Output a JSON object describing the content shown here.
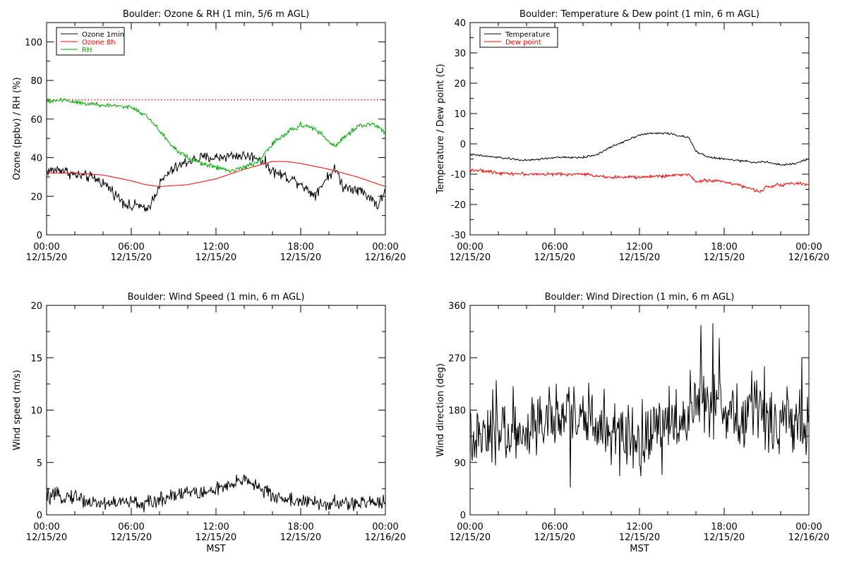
{
  "chart_data": [
    {
      "type": "line",
      "title": "Boulder: Ozone & RH (1 min, 5/6 m AGL)",
      "xlabel": "",
      "ylabel": "Ozone (ppbv) / RH (%)",
      "ylim": [
        0,
        110
      ],
      "yticks": [
        0,
        20,
        40,
        60,
        80,
        100
      ],
      "xlim": [
        0,
        24
      ],
      "xticks": [
        0,
        6,
        12,
        18,
        24
      ],
      "xtick_labels": [
        [
          "00:00",
          "12/15/20"
        ],
        [
          "06:00",
          "12/15/20"
        ],
        [
          "12:00",
          "12/15/20"
        ],
        [
          "18:00",
          "12/15/20"
        ],
        [
          "00:00",
          "12/16/20"
        ]
      ],
      "legend_position": "top-left",
      "reference_line": {
        "y": 70,
        "color": "#ff0000",
        "style": "dotted"
      },
      "series": [
        {
          "name": "Ozone 1min",
          "color": "#000000",
          "noise": 2.2,
          "x": [
            0,
            1,
            2,
            3,
            3.5,
            4,
            4.5,
            5,
            5.5,
            6,
            6.5,
            7,
            7.5,
            8,
            8.5,
            9,
            10,
            11,
            12,
            13,
            14,
            15,
            15.5,
            16,
            17,
            18,
            18.5,
            19,
            19.5,
            20,
            20.5,
            21,
            22,
            23,
            23.5,
            24
          ],
          "y": [
            33,
            34,
            31,
            30,
            29,
            27,
            24,
            20,
            17,
            14,
            16,
            12,
            18,
            26,
            31,
            34,
            38,
            40,
            40,
            41,
            41,
            40,
            37,
            33,
            30,
            27,
            23,
            21,
            26,
            31,
            34,
            25,
            24,
            19,
            15,
            23
          ]
        },
        {
          "name": "Ozone 8h",
          "color": "#ff0000",
          "noise": 0,
          "x": [
            0,
            2,
            4,
            6,
            7,
            8,
            10,
            12,
            14,
            16,
            17,
            18,
            20,
            22,
            24
          ],
          "y": [
            32,
            32,
            31,
            28,
            26,
            25,
            26,
            29,
            34,
            38,
            38,
            37,
            34,
            30,
            25
          ]
        },
        {
          "name": "RH",
          "color": "#00aa00",
          "noise": 1.0,
          "x": [
            0,
            1,
            2,
            3,
            4,
            5,
            6,
            7,
            8,
            9,
            10,
            11,
            12,
            13,
            14,
            15,
            16,
            17,
            18,
            19,
            19.5,
            20,
            20.5,
            21,
            22,
            23,
            24
          ],
          "y": [
            69,
            70,
            69,
            68,
            67,
            67,
            66,
            62,
            54,
            45,
            40,
            37,
            35,
            33,
            35,
            38,
            47,
            53,
            57,
            55,
            52,
            48,
            46,
            50,
            56,
            58,
            53
          ]
        }
      ]
    },
    {
      "type": "line",
      "title": "Boulder: Temperature & Dew point (1 min, 6 m AGL)",
      "xlabel": "",
      "ylabel": "Temperature / Dew point (C)",
      "ylim": [
        -30,
        40
      ],
      "yticks": [
        -30,
        -20,
        -10,
        0,
        10,
        20,
        30,
        40
      ],
      "xlim": [
        0,
        24
      ],
      "xticks": [
        0,
        6,
        12,
        18,
        24
      ],
      "xtick_labels": [
        [
          "00:00",
          "12/15/20"
        ],
        [
          "06:00",
          "12/15/20"
        ],
        [
          "12:00",
          "12/15/20"
        ],
        [
          "18:00",
          "12/15/20"
        ],
        [
          "00:00",
          "12/16/20"
        ]
      ],
      "legend_position": "top-left",
      "series": [
        {
          "name": "Temperature",
          "color": "#000000",
          "noise": 0.25,
          "x": [
            0,
            1,
            2,
            3,
            4,
            5,
            6,
            7,
            8,
            9,
            10,
            11,
            12,
            13,
            14,
            15,
            15.5,
            16,
            17,
            18,
            19,
            20,
            21,
            22,
            23,
            24
          ],
          "y": [
            -3.5,
            -4,
            -4.5,
            -5,
            -5.5,
            -5,
            -4.5,
            -4.5,
            -4.5,
            -3.5,
            -1,
            1,
            3,
            3.5,
            3.5,
            2.5,
            2,
            -2.5,
            -4.5,
            -5,
            -5.5,
            -6,
            -6,
            -7,
            -6.5,
            -5
          ]
        },
        {
          "name": "Dew point",
          "color": "#ff0000",
          "noise": 0.4,
          "x": [
            0,
            2,
            4,
            6,
            8,
            10,
            12,
            14,
            15.5,
            16,
            17,
            18,
            19,
            20,
            20.5,
            21,
            22,
            23,
            24
          ],
          "y": [
            -8.5,
            -9.5,
            -10,
            -10,
            -10,
            -11,
            -11,
            -10.5,
            -10,
            -12.5,
            -12,
            -12.5,
            -13.5,
            -15,
            -16,
            -14,
            -13.5,
            -13,
            -13.5
          ]
        }
      ]
    },
    {
      "type": "line",
      "title": "Boulder: Wind Speed (1 min, 6 m AGL)",
      "xlabel": "MST",
      "ylabel": "Wind speed (m/s)",
      "ylim": [
        0,
        20
      ],
      "yticks": [
        0,
        5,
        10,
        15,
        20
      ],
      "xlim": [
        0,
        24
      ],
      "xticks": [
        0,
        6,
        12,
        18,
        24
      ],
      "xtick_labels": [
        [
          "00:00",
          "12/15/20"
        ],
        [
          "06:00",
          "12/15/20"
        ],
        [
          "12:00",
          "12/15/20"
        ],
        [
          "18:00",
          "12/15/20"
        ],
        [
          "00:00",
          "12/16/20"
        ]
      ],
      "series": [
        {
          "name": "",
          "color": "#000000",
          "noise": 0.55,
          "x": [
            0,
            2,
            3,
            4,
            5,
            6,
            7,
            8,
            9,
            10,
            11,
            12,
            13,
            14,
            14.5,
            15,
            16,
            17,
            18,
            19,
            20,
            21,
            22,
            23,
            24
          ],
          "y": [
            1.7,
            1.8,
            1.2,
            1.1,
            1.2,
            1.2,
            1.0,
            1.4,
            2.0,
            2.2,
            2.0,
            2.5,
            2.6,
            3.5,
            3.2,
            2.6,
            1.8,
            1.5,
            1.3,
            1.1,
            1.0,
            1.1,
            1.0,
            1.2,
            1.4
          ]
        }
      ]
    },
    {
      "type": "line",
      "title": "Boulder: Wind Direction (1 min, 6 m AGL)",
      "xlabel": "MST",
      "ylabel": "Wind direction (deg)",
      "ylim": [
        0,
        360
      ],
      "yticks": [
        0,
        90,
        180,
        270,
        360
      ],
      "xlim": [
        0,
        24
      ],
      "xticks": [
        0,
        6,
        12,
        18,
        24
      ],
      "xtick_labels": [
        [
          "00:00",
          "12/15/20"
        ],
        [
          "06:00",
          "12/15/20"
        ],
        [
          "12:00",
          "12/15/20"
        ],
        [
          "18:00",
          "12/15/20"
        ],
        [
          "00:00",
          "12/16/20"
        ]
      ],
      "series": [
        {
          "name": "",
          "color": "#000000",
          "noise": 45,
          "x": [
            0,
            1,
            2,
            3,
            3.5,
            4,
            5,
            6,
            7,
            8,
            9,
            10,
            11,
            12,
            13,
            14,
            15,
            15.5,
            16,
            17,
            18,
            19,
            20,
            21,
            22,
            23,
            24
          ],
          "y": [
            125,
            130,
            140,
            150,
            135,
            150,
            160,
            170,
            175,
            160,
            155,
            140,
            130,
            115,
            145,
            150,
            150,
            190,
            200,
            200,
            180,
            170,
            170,
            160,
            165,
            160,
            155
          ]
        }
      ]
    }
  ]
}
